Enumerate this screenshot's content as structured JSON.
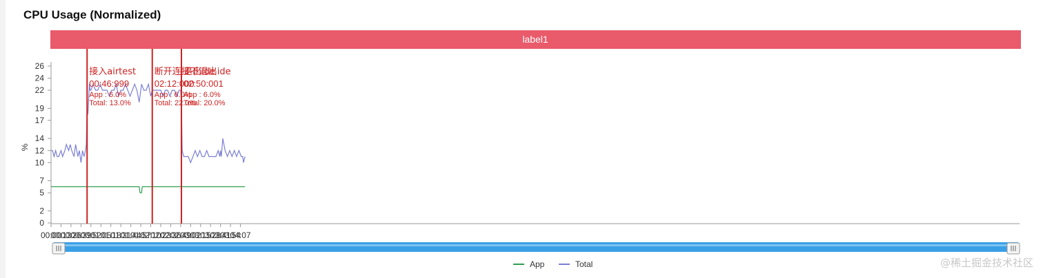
{
  "page": {
    "title": "CPU Usage (Normalized)",
    "watermark": "@稀土掘金技术社区"
  },
  "chart_data": {
    "type": "line",
    "title": "CPU Usage (Normalized)",
    "ylabel": "%",
    "xlabel": "",
    "band_label": "label1",
    "yticks": [
      0,
      2,
      5,
      7,
      10,
      12,
      14,
      17,
      19,
      22,
      24,
      26
    ],
    "ylim": [
      0,
      26
    ],
    "x_range_seconds": [
      0,
      1263
    ],
    "xticks": [
      "00:00",
      "00:13",
      "00:26",
      "00:39",
      "00:52",
      "01:05",
      "01:18",
      "01:31",
      "01:44",
      "01:57",
      "02:10",
      "02:23",
      "02:36",
      "02:49",
      "03:02",
      "03:15",
      "03:28",
      "03:41",
      "03:54",
      "04:07"
    ],
    "legend_position": "bottom",
    "grid": false,
    "colors": {
      "App": "#2e9e4f",
      "Total": "#7b7fd4",
      "marker": "#cc2222",
      "band": "#e95a6a",
      "scroll": "#3aa0e6"
    },
    "markers": [
      {
        "time": "00:46:999",
        "name": "接入airtest",
        "app": "App : 6.0%",
        "total": "Total: 13.0%"
      },
      {
        "time": "02:12:000",
        "name": "断开连接不退出ide",
        "app": "App : 6.0%",
        "total": "Total: 22.0%"
      },
      {
        "time": "02:50:001",
        "name": "退出ide",
        "app": "App : 6.0%",
        "total": "Total: 20.0%"
      }
    ],
    "series": [
      {
        "name": "App",
        "x": [
          "00:00",
          "01:55",
          "01:56",
          "01:58",
          "01:59",
          "04:13"
        ],
        "values": [
          6,
          6,
          5,
          5,
          6,
          6
        ]
      },
      {
        "name": "Total",
        "x": [
          "00:00",
          "00:02",
          "00:04",
          "00:06",
          "00:08",
          "00:10",
          "00:13",
          "00:15",
          "00:18",
          "00:20",
          "00:23",
          "00:25",
          "00:27",
          "00:30",
          "00:32",
          "00:35",
          "00:37",
          "00:39",
          "00:41",
          "00:43",
          "00:45",
          "00:46",
          "00:47",
          "00:48",
          "00:50",
          "00:51",
          "00:52",
          "00:55",
          "00:58",
          "01:01",
          "01:04",
          "01:07",
          "01:10",
          "01:13",
          "01:16",
          "01:19",
          "01:22",
          "01:25",
          "01:28",
          "01:31",
          "01:34",
          "01:37",
          "01:40",
          "01:43",
          "01:46",
          "01:49",
          "01:52",
          "01:55",
          "01:58",
          "02:01",
          "02:04",
          "02:07",
          "02:10",
          "02:12",
          "02:14",
          "02:17",
          "02:20",
          "02:23",
          "02:26",
          "02:29",
          "02:32",
          "02:35",
          "02:38",
          "02:41",
          "02:44",
          "02:47",
          "02:49",
          "02:50",
          "02:51",
          "02:53",
          "02:56",
          "02:59",
          "03:02",
          "03:05",
          "03:08",
          "03:11",
          "03:14",
          "03:17",
          "03:20",
          "03:23",
          "03:26",
          "03:29",
          "03:32",
          "03:35",
          "03:38",
          "03:40",
          "03:41",
          "03:42",
          "03:44",
          "03:47",
          "03:50",
          "03:53",
          "03:56",
          "03:59",
          "04:02",
          "04:05",
          "04:08",
          "04:10",
          "04:11",
          "04:13"
        ],
        "values": [
          12,
          12,
          11,
          12,
          11,
          11,
          12,
          11,
          12,
          13,
          12,
          13,
          12,
          11,
          13,
          11,
          12,
          10,
          12,
          11,
          12,
          13,
          19,
          18,
          23,
          22,
          22,
          23,
          22,
          22,
          23,
          22,
          22,
          22,
          21,
          22,
          22,
          23,
          21,
          22,
          22,
          23,
          22,
          21,
          22,
          23,
          22,
          20,
          23,
          22,
          22,
          23,
          21,
          22,
          22,
          22,
          22,
          22,
          21,
          22,
          22,
          21,
          22,
          22,
          21,
          22,
          22,
          20,
          12,
          11,
          11,
          11,
          10,
          11,
          12,
          11,
          12,
          11,
          11,
          12,
          11,
          11,
          11,
          11,
          12,
          11,
          12,
          11,
          14,
          12,
          11,
          12,
          11,
          12,
          11,
          12,
          11,
          11,
          10,
          11
        ]
      }
    ]
  }
}
